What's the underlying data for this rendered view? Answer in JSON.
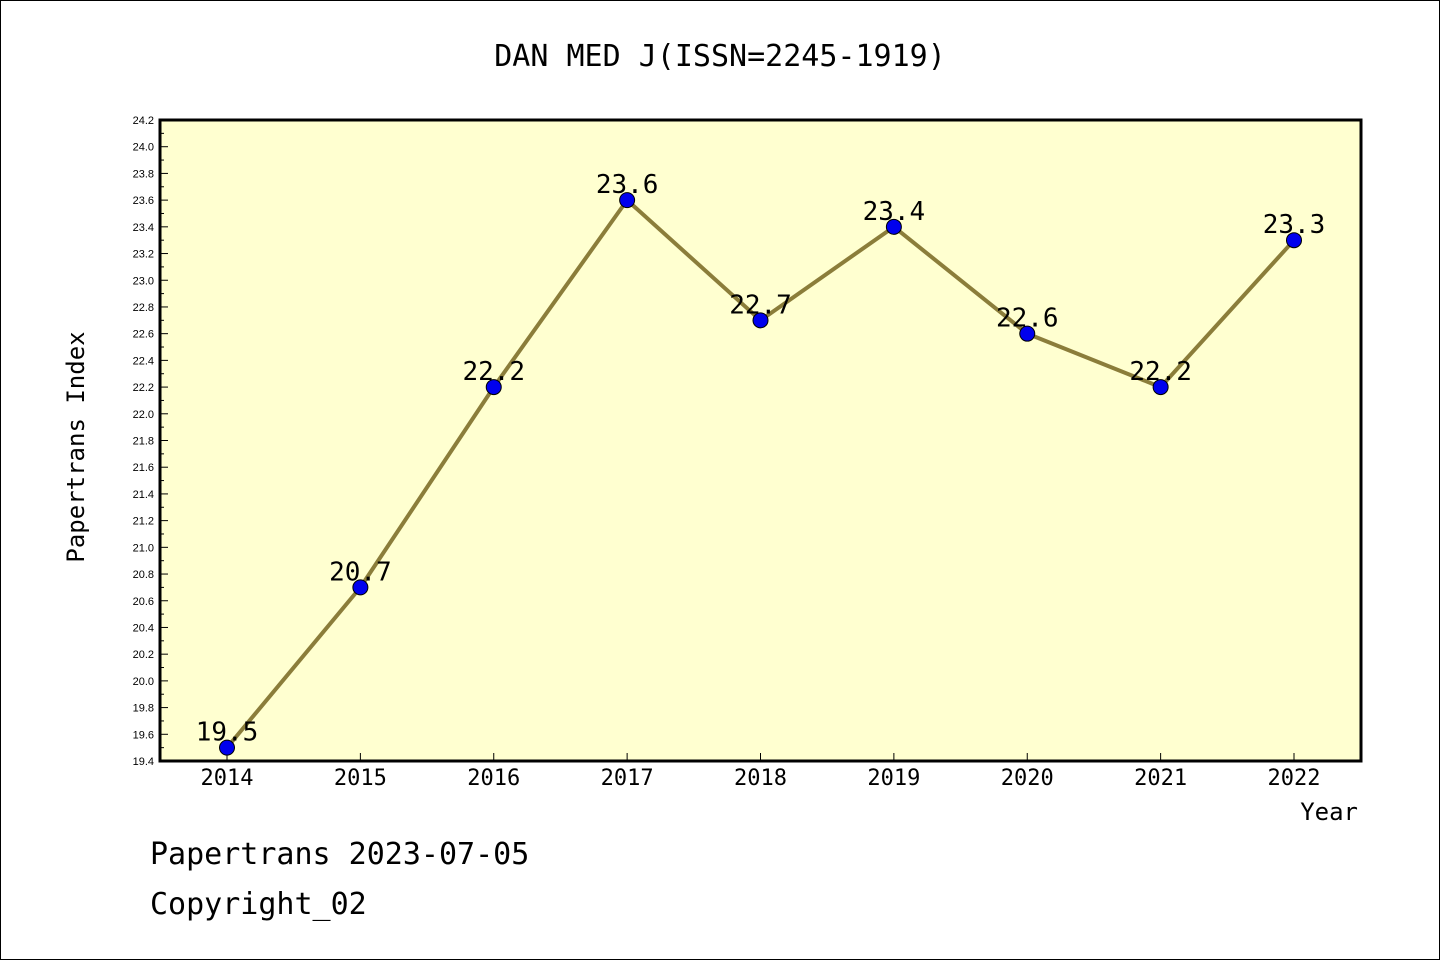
{
  "chart_data": {
    "type": "line",
    "title": "DAN MED J(ISSN=2245-1919)",
    "xlabel": "Year",
    "ylabel": "Papertrans Index",
    "categories": [
      "2014",
      "2015",
      "2016",
      "2017",
      "2018",
      "2019",
      "2020",
      "2021",
      "2022"
    ],
    "series": [
      {
        "values": [
          19.5,
          20.7,
          22.2,
          23.6,
          22.7,
          23.4,
          22.6,
          22.2,
          23.3
        ],
        "labels": [
          "19.5",
          "20.7",
          "22.2",
          "23.6",
          "22.7",
          "23.4",
          "22.6",
          "22.2",
          "23.3"
        ],
        "line_color": "#8b7d3a",
        "marker_color": "#0000ee"
      }
    ],
    "ylim": [
      19.4,
      24.2
    ],
    "yticks": [
      "19.4",
      "19.6",
      "19.8",
      "20.0",
      "20.2",
      "20.4",
      "20.6",
      "20.8",
      "21.0",
      "21.2",
      "21.4",
      "21.6",
      "21.8",
      "22.0",
      "22.2",
      "22.4",
      "22.6",
      "22.8",
      "23.0",
      "23.2",
      "23.4",
      "23.6",
      "23.8",
      "24.0",
      "24.2"
    ],
    "plot_background": "#ffffd0",
    "grid": false,
    "legend": "none"
  },
  "footer": {
    "line1": "Papertrans 2023-07-05",
    "line2": "Copyright_02"
  }
}
